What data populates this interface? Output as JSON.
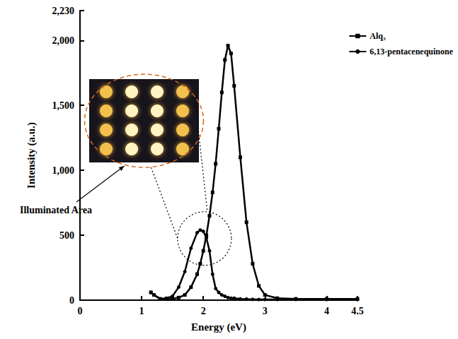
{
  "chart_data": {
    "type": "line",
    "x_label": "Energy (eV)",
    "y_label": "Intensity (a.u.)",
    "x": [
      1.15,
      1.2,
      1.3,
      1.4,
      1.5,
      1.6,
      1.7,
      1.8,
      1.9,
      1.95,
      2.0,
      2.05,
      2.1,
      2.15,
      2.2,
      2.25,
      2.3,
      2.35,
      2.4,
      2.45,
      2.5,
      2.6,
      2.7,
      2.8,
      2.9,
      3.0,
      3.2,
      3.5,
      4.0,
      4.5
    ],
    "series": [
      {
        "name": "Alq₃",
        "color": "#000000",
        "marker": "square",
        "line_style": "solid",
        "values": [
          60,
          40,
          10,
          8,
          10,
          20,
          40,
          100,
          200,
          280,
          380,
          500,
          650,
          830,
          1050,
          1320,
          1600,
          1850,
          1960,
          1900,
          1650,
          1100,
          600,
          280,
          110,
          40,
          15,
          10,
          10,
          10
        ]
      },
      {
        "name": "6,13-pentacenequinone",
        "color": "#000000",
        "marker": "circle",
        "line_style": "solid",
        "values": [
          60,
          40,
          10,
          15,
          30,
          100,
          220,
          400,
          520,
          540,
          530,
          480,
          380,
          200,
          90,
          60,
          40,
          30,
          20,
          15,
          15,
          10,
          8,
          6,
          5,
          5,
          5,
          5,
          5,
          5
        ]
      }
    ],
    "xlim": [
      0,
      4.5
    ],
    "xticks": [
      0,
      1,
      2,
      3,
      4
    ],
    "ylim": [
      0,
      2230
    ],
    "yticks": [
      0,
      500,
      1000,
      1500,
      2000
    ],
    "grid": false,
    "legend": "upper right",
    "annotations": [
      {
        "text": "Illuminated Area"
      }
    ]
  }
}
